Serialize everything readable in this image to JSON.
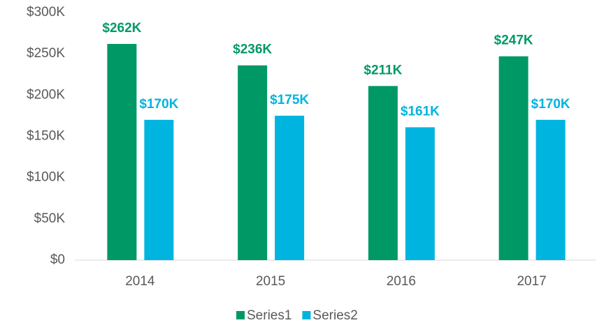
{
  "chart_data": {
    "type": "bar",
    "categories": [
      "2014",
      "2015",
      "2016",
      "2017"
    ],
    "series": [
      {
        "name": "Series1",
        "color": "#009966",
        "values": [
          262000,
          236000,
          211000,
          247000
        ],
        "value_labels": [
          "$262K",
          "$236K",
          "$211K",
          "$247K"
        ]
      },
      {
        "name": "Series2",
        "color": "#00b4e0",
        "values": [
          170000,
          175000,
          161000,
          170000
        ],
        "value_labels": [
          "$170K",
          "$175K",
          "$161K",
          "$170K"
        ]
      }
    ],
    "ylim": [
      0,
      300000
    ],
    "yticks": [
      {
        "value": 0,
        "label": "$0"
      },
      {
        "value": 50000,
        "label": "$50K"
      },
      {
        "value": 100000,
        "label": "$100K"
      },
      {
        "value": 150000,
        "label": "$150K"
      },
      {
        "value": 200000,
        "label": "$200K"
      },
      {
        "value": 250000,
        "label": "$250K"
      },
      {
        "value": 300000,
        "label": "$300K"
      }
    ],
    "grid": false,
    "legend": "bottom"
  }
}
